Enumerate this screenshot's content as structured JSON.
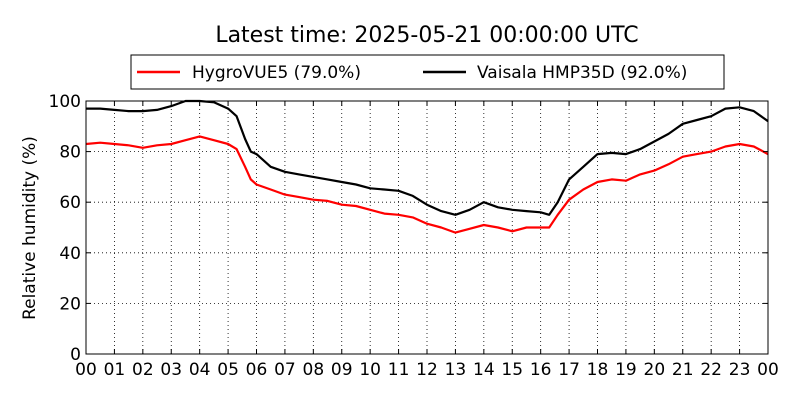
{
  "chart_data": {
    "type": "line",
    "title": "Latest time: 2025-05-21 00:00:00 UTC",
    "xlabel": "",
    "ylabel": "Relative humidity (%)",
    "xlim": [
      0,
      24
    ],
    "ylim": [
      0,
      100
    ],
    "x_ticks": [
      0,
      1,
      2,
      3,
      4,
      5,
      6,
      7,
      8,
      9,
      10,
      11,
      12,
      13,
      14,
      15,
      16,
      17,
      18,
      19,
      20,
      21,
      22,
      23,
      24
    ],
    "x_tick_labels": [
      "00",
      "01",
      "02",
      "03",
      "04",
      "05",
      "06",
      "07",
      "08",
      "09",
      "10",
      "11",
      "12",
      "13",
      "14",
      "15",
      "16",
      "17",
      "18",
      "19",
      "20",
      "21",
      "22",
      "23",
      "00"
    ],
    "y_ticks": [
      0,
      20,
      40,
      60,
      80,
      100
    ],
    "y_tick_labels": [
      "0",
      "20",
      "40",
      "60",
      "80",
      "100"
    ],
    "grid": true,
    "legend_position": "top-center",
    "series": [
      {
        "name": "HygroVUE5 (79.0%)",
        "color": "#ff0000",
        "x": [
          0,
          0.5,
          1,
          1.5,
          2,
          2.5,
          3,
          3.5,
          4,
          4.5,
          5,
          5.3,
          5.6,
          5.8,
          6,
          6.5,
          7,
          7.5,
          8,
          8.5,
          9,
          9.5,
          10,
          10.5,
          11,
          11.5,
          12,
          12.5,
          13,
          13.5,
          14,
          14.5,
          15,
          15.5,
          16,
          16.3,
          16.6,
          17,
          17.5,
          18,
          18.5,
          19,
          19.5,
          20,
          20.5,
          21,
          21.5,
          22,
          22.5,
          23,
          23.5,
          24
        ],
        "y": [
          83,
          83.5,
          83,
          82.5,
          81.5,
          82.5,
          83,
          84.5,
          86,
          84.5,
          83,
          81,
          74,
          69,
          67,
          65,
          63,
          62,
          61,
          60.5,
          59,
          58.5,
          57,
          55.5,
          55,
          54,
          51.5,
          50,
          48,
          49.5,
          51,
          50,
          48.5,
          50,
          50,
          50,
          55,
          61,
          65,
          68,
          69,
          68.5,
          71,
          72.5,
          75,
          78,
          79,
          80,
          82,
          83,
          82,
          79
        ]
      },
      {
        "name": "Vaisala HMP35D (92.0%)",
        "color": "#000000",
        "x": [
          0,
          0.5,
          1,
          1.5,
          2,
          2.5,
          3,
          3.5,
          4,
          4.5,
          5,
          5.3,
          5.6,
          5.8,
          6,
          6.5,
          7,
          7.5,
          8,
          8.5,
          9,
          9.5,
          10,
          10.5,
          11,
          11.5,
          12,
          12.5,
          13,
          13.5,
          14,
          14.5,
          15,
          15.5,
          16,
          16.3,
          16.6,
          17,
          17.5,
          18,
          18.5,
          19,
          19.5,
          20,
          20.5,
          21,
          21.5,
          22,
          22.5,
          23,
          23.5,
          24
        ],
        "y": [
          97,
          97,
          96.5,
          96,
          96,
          96.5,
          98,
          100,
          100,
          99.5,
          97,
          94,
          85,
          80,
          79,
          74,
          72,
          71,
          70,
          69,
          68,
          67,
          65.5,
          65,
          64.5,
          62.5,
          59,
          56.5,
          55,
          57,
          60,
          58,
          57,
          56.5,
          56,
          55,
          60,
          69,
          74,
          79,
          79.5,
          79,
          81,
          84,
          87,
          91,
          92.5,
          94,
          97,
          97.5,
          96,
          92
        ]
      }
    ]
  }
}
